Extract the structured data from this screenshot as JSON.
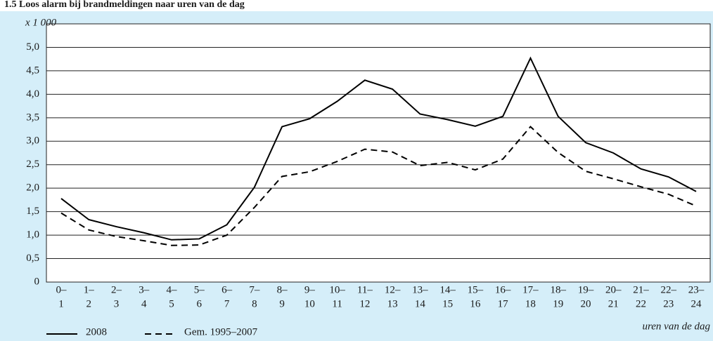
{
  "chart_data": {
    "type": "line",
    "title": "1.5 Loos alarm bij brandmeldingen naar uren van de dag",
    "y_unit": "x 1 000",
    "x_label": "uren van de dag",
    "categories": [
      [
        "0–",
        "1"
      ],
      [
        "1–",
        "2"
      ],
      [
        "2–",
        "3"
      ],
      [
        "3–",
        "4"
      ],
      [
        "4–",
        "5"
      ],
      [
        "5–",
        "6"
      ],
      [
        "6–",
        "7"
      ],
      [
        "7–",
        "8"
      ],
      [
        "8–",
        "9"
      ],
      [
        "9–",
        "10"
      ],
      [
        "10–",
        "11"
      ],
      [
        "11–",
        "12"
      ],
      [
        "12–",
        "13"
      ],
      [
        "13–",
        "14"
      ],
      [
        "14–",
        "15"
      ],
      [
        "15–",
        "16"
      ],
      [
        "16–",
        "17"
      ],
      [
        "17–",
        "18"
      ],
      [
        "18–",
        "19"
      ],
      [
        "19–",
        "20"
      ],
      [
        "20–",
        "21"
      ],
      [
        "21–",
        "22"
      ],
      [
        "22–",
        "23"
      ],
      [
        "23–",
        "24"
      ]
    ],
    "series": [
      {
        "name": "2008",
        "color": "#000000",
        "style": "solid",
        "values": [
          1.78,
          1.33,
          1.18,
          1.05,
          0.9,
          0.92,
          1.22,
          2.02,
          3.31,
          3.48,
          3.85,
          4.3,
          4.11,
          3.58,
          3.46,
          3.32,
          3.53,
          4.77,
          3.53,
          2.97,
          2.75,
          2.41,
          2.24,
          1.93
        ]
      },
      {
        "name": "Gem. 1995–2007",
        "color": "#000000",
        "style": "dashed",
        "values": [
          1.47,
          1.11,
          0.97,
          0.88,
          0.78,
          0.79,
          1.0,
          1.59,
          2.25,
          2.35,
          2.57,
          2.83,
          2.77,
          2.48,
          2.55,
          2.39,
          2.62,
          3.31,
          2.76,
          2.36,
          2.2,
          2.03,
          1.87,
          1.62
        ]
      }
    ],
    "ylim": [
      0,
      5.5
    ],
    "yticks": [
      0,
      {
        "value": 0.5,
        "label": "0,5"
      },
      {
        "value": 1,
        "label": "1,0"
      },
      {
        "value": 1.5,
        "label": "1,5"
      },
      {
        "value": 2,
        "label": "2,0"
      },
      {
        "value": 2.5,
        "label": "2,5"
      },
      {
        "value": 3,
        "label": "3,0"
      },
      {
        "value": 3.5,
        "label": "3,5"
      },
      {
        "value": 4,
        "label": "4,0"
      },
      {
        "value": 4.5,
        "label": "4,5"
      },
      {
        "value": 5,
        "label": "5,0"
      }
    ],
    "grid": true
  }
}
